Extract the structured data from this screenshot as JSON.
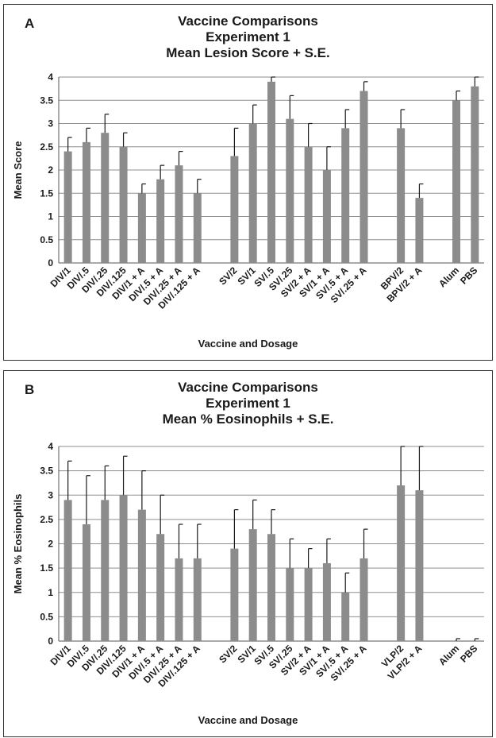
{
  "colors": {
    "bar": "#8c8c8c",
    "grid": "#8f8f8f",
    "axis": "#555555",
    "text": "#1a1a1a"
  },
  "chart_data": [
    {
      "panel": "A",
      "type": "bar",
      "title": [
        "Vaccine Comparisons",
        "Experiment 1",
        "Mean Lesion Score + S.E."
      ],
      "xlabel": "Vaccine and Dosage",
      "ylabel": "Mean Score",
      "ylim": [
        0,
        4
      ],
      "yticks": [
        "0",
        "0.5",
        "1",
        "1.5",
        "2",
        "2.5",
        "3",
        "3.5",
        "4"
      ],
      "grid": true,
      "error_bars": "plus S.E.",
      "categories": [
        "DIV/1",
        "DIV/.5",
        "DIV/.25",
        "DIV/.125",
        "DIV/1 + A",
        "DIV/.5 + A",
        "DIV/.25 + A",
        "DIV/.125 + A",
        "",
        "SV/2",
        "SV/1",
        "SV/.5",
        "SV/.25",
        "SV/2 + A",
        "SV/1 + A",
        "SV/.5 + A",
        "SV/.25 + A",
        "",
        "BPV/2",
        "BPV/2 + A",
        "",
        "Alum",
        "PBS"
      ],
      "values": [
        2.4,
        2.6,
        2.8,
        2.5,
        1.5,
        1.8,
        2.1,
        1.5,
        null,
        2.3,
        3.0,
        3.9,
        3.1,
        2.5,
        2.0,
        2.9,
        3.7,
        null,
        2.9,
        1.4,
        null,
        3.5,
        3.8
      ],
      "errors": [
        0.3,
        0.3,
        0.4,
        0.3,
        0.2,
        0.3,
        0.3,
        0.3,
        null,
        0.6,
        0.4,
        0.1,
        0.5,
        0.5,
        0.5,
        0.4,
        0.2,
        null,
        0.4,
        0.3,
        null,
        0.2,
        0.2
      ]
    },
    {
      "panel": "B",
      "type": "bar",
      "title": [
        "Vaccine Comparisons",
        "Experiment 1",
        "Mean % Eosinophils + S.E."
      ],
      "xlabel": "Vaccine and Dosage",
      "ylabel": "Mean % Eosinophils",
      "ylim": [
        0,
        4
      ],
      "yticks": [
        "0",
        "0.5",
        "1",
        "1.5",
        "2",
        "2.5",
        "3",
        "3.5",
        "4"
      ],
      "grid": true,
      "error_bars": "plus S.E.",
      "categories": [
        "DIV/1",
        "DIV/.5",
        "DIV/.25",
        "DIV/.125",
        "DIV/1 + A",
        "DIV/.5 + A",
        "DIV/.25 + A",
        "DIV/.125 + A",
        "",
        "SV/2",
        "SV/1",
        "SV/.5",
        "SV/.25",
        "SV/2 + A",
        "SV/1 + A",
        "SV/.5 + A",
        "SV/.25 + A",
        "",
        "VLP/2",
        "VLP/2 + A",
        "",
        "Alum",
        "PBS"
      ],
      "values": [
        2.9,
        2.4,
        2.9,
        3.0,
        2.7,
        2.2,
        1.7,
        1.7,
        null,
        1.9,
        2.3,
        2.2,
        1.5,
        1.5,
        1.6,
        1.0,
        1.7,
        null,
        3.2,
        3.1,
        null,
        0.0,
        0.0
      ],
      "errors": [
        0.8,
        1.0,
        0.7,
        0.8,
        0.8,
        0.8,
        0.7,
        0.7,
        null,
        0.8,
        0.6,
        0.5,
        0.6,
        0.4,
        0.5,
        0.4,
        0.6,
        null,
        0.8,
        0.9,
        null,
        0.05,
        0.05
      ]
    }
  ]
}
